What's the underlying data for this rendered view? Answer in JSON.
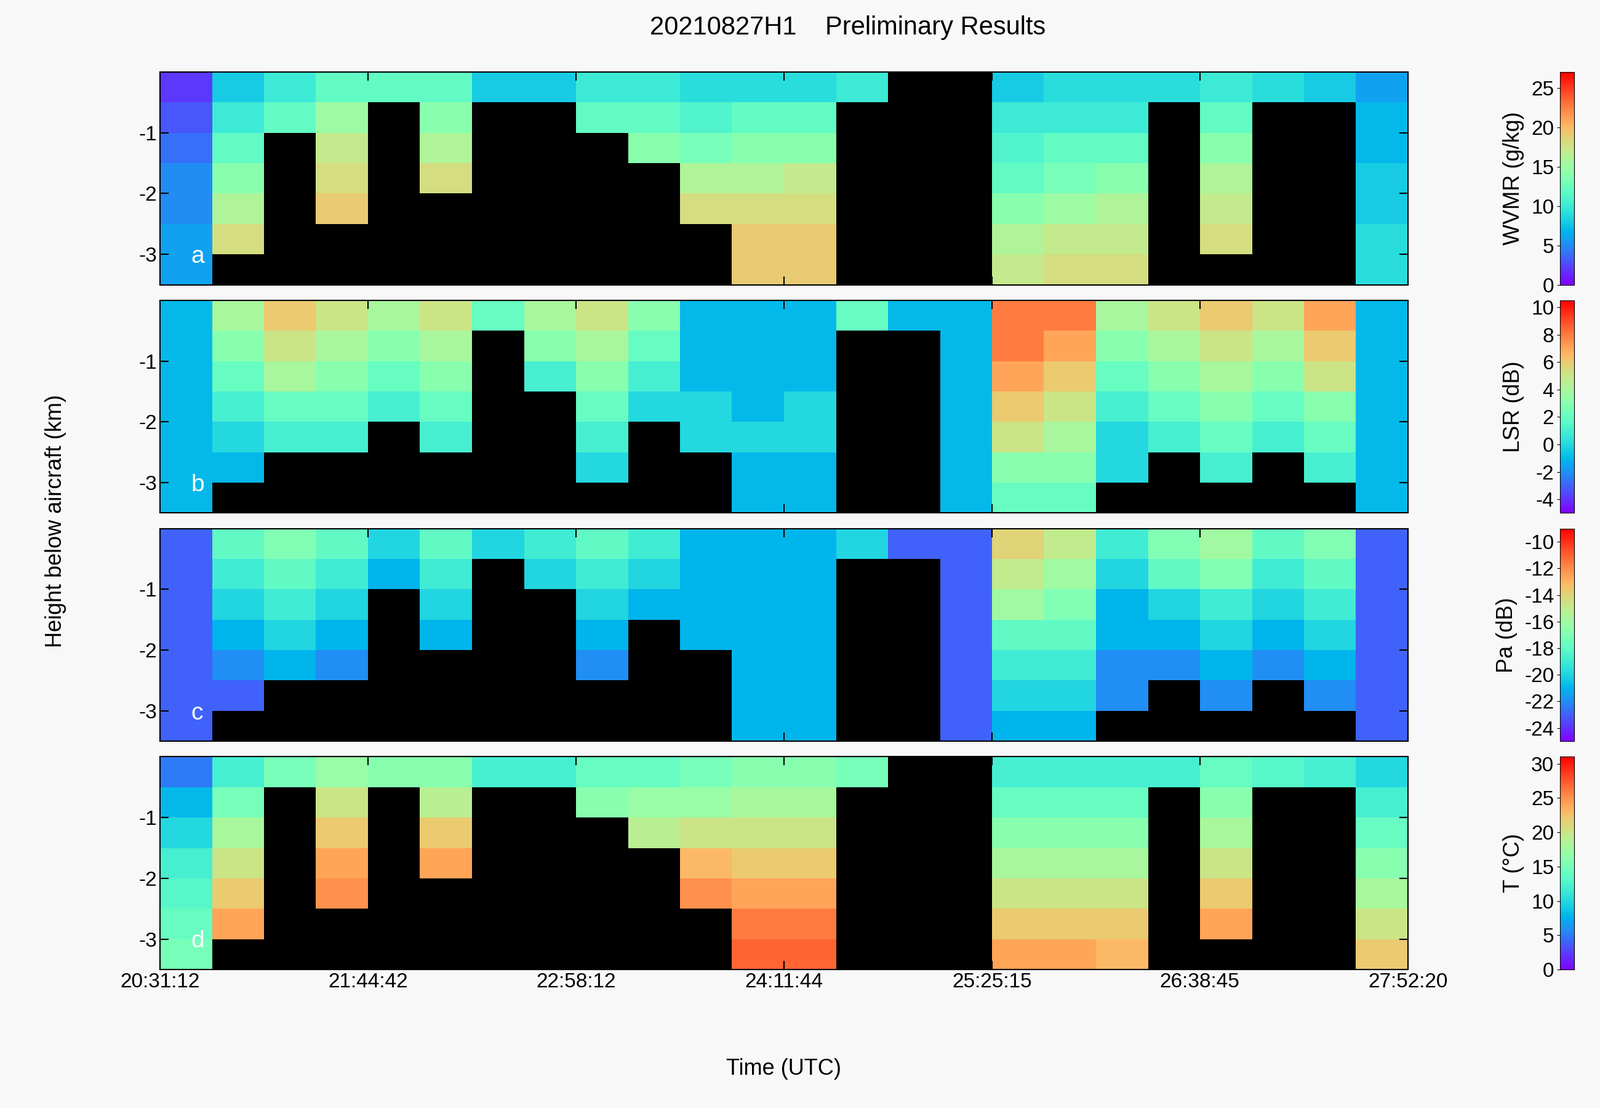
{
  "title": "20210827H1    Preliminary Results",
  "ylabel": "Height below aircraft (km)",
  "xlabel": "Time (UTC)",
  "chart_data": [
    {
      "type": "heatmap",
      "panel": "a",
      "tick_labels": "y",
      "time_edges": [
        73872,
        74975,
        76078,
        77180,
        78283,
        79386,
        80489,
        81592,
        82695,
        83798,
        84900,
        86003,
        87106,
        88209,
        89312,
        90415,
        91517,
        92620,
        93723,
        94826,
        95929,
        97032,
        98135,
        99237,
        100340
      ],
      "height_edges": [
        0,
        -0.5,
        -1,
        -1.5,
        -2,
        -2.5,
        -3,
        -3.5
      ],
      "xlim": [
        73872,
        100340
      ],
      "ylim": [
        -3.5,
        0
      ],
      "xticks": [
        {
          "value": 73872,
          "label": "20:31:12"
        },
        {
          "value": 78282,
          "label": "21:44:42"
        },
        {
          "value": 82692,
          "label": "22:58:12"
        },
        {
          "value": 87104,
          "label": "24:11:44"
        },
        {
          "value": 91515,
          "label": "25:25:15"
        },
        {
          "value": 95925,
          "label": "26:38:45"
        },
        {
          "value": 100340,
          "label": "27:52:20"
        }
      ],
      "yticks": [
        -1,
        -2,
        -3
      ],
      "colorbar": {
        "label": "WVMR (g/kg)",
        "range": [
          0,
          27
        ],
        "ticks": [
          0,
          5,
          10,
          15,
          20,
          25
        ]
      },
      "cells": [
        [
          2,
          3,
          4,
          5,
          5,
          6,
          6
        ],
        [
          8,
          10,
          12,
          14,
          16,
          18,
          null
        ],
        [
          10,
          12,
          null,
          null,
          null,
          null,
          null
        ],
        [
          12,
          15,
          17,
          18,
          19,
          null,
          null
        ],
        [
          12,
          null,
          null,
          null,
          null,
          null,
          null
        ],
        [
          12,
          14,
          16,
          18,
          null,
          null,
          null
        ],
        [
          8,
          null,
          null,
          null,
          null,
          null,
          null
        ],
        [
          8,
          null,
          null,
          null,
          null,
          null,
          null
        ],
        [
          10,
          12,
          null,
          null,
          null,
          null,
          null
        ],
        [
          10,
          12,
          14,
          null,
          null,
          null,
          null
        ],
        [
          9,
          11,
          13,
          16,
          18,
          null,
          null
        ],
        [
          9,
          12,
          14,
          16,
          18,
          19,
          19
        ],
        [
          9,
          12,
          14,
          17,
          18,
          19,
          19
        ],
        [
          10,
          null,
          null,
          null,
          null,
          null,
          null
        ],
        [
          null,
          null,
          null,
          null,
          null,
          null,
          null
        ],
        [
          null,
          null,
          null,
          null,
          null,
          null,
          null
        ],
        [
          8,
          10,
          11,
          12,
          14,
          16,
          17
        ],
        [
          9,
          10,
          12,
          13,
          15,
          17,
          18
        ],
        [
          9,
          10,
          12,
          14,
          16,
          17,
          18
        ],
        [
          9,
          null,
          null,
          null,
          null,
          null,
          null
        ],
        [
          10,
          12,
          14,
          16,
          17,
          18,
          null
        ],
        [
          9,
          null,
          null,
          null,
          null,
          null,
          null
        ],
        [
          8,
          null,
          null,
          null,
          null,
          null,
          null
        ],
        [
          6,
          7,
          7,
          8,
          8,
          9,
          9
        ]
      ]
    },
    {
      "type": "heatmap",
      "panel": "b",
      "tick_labels": "y",
      "time_edges": [
        73872,
        74975,
        76078,
        77180,
        78283,
        79386,
        80489,
        81592,
        82695,
        83798,
        84900,
        86003,
        87106,
        88209,
        89312,
        90415,
        91517,
        92620,
        93723,
        94826,
        95929,
        97032,
        98135,
        99237,
        100340
      ],
      "height_edges": [
        0,
        -0.5,
        -1,
        -1.5,
        -2,
        -2.5,
        -3,
        -3.5
      ],
      "xlim": [
        73872,
        100340
      ],
      "ylim": [
        -3.5,
        0
      ],
      "xticks": [
        {
          "value": 73872,
          "label": "20:31:12"
        },
        {
          "value": 78282,
          "label": "21:44:42"
        },
        {
          "value": 82692,
          "label": "22:58:12"
        },
        {
          "value": 87104,
          "label": "24:11:44"
        },
        {
          "value": 91515,
          "label": "25:25:15"
        },
        {
          "value": 95925,
          "label": "26:38:45"
        },
        {
          "value": 100340,
          "label": "27:52:20"
        }
      ],
      "yticks": [
        -1,
        -2,
        -3
      ],
      "colorbar": {
        "label": "LSR (dB)",
        "range": [
          -5,
          10.5
        ],
        "ticks": [
          -4,
          -2,
          0,
          2,
          4,
          6,
          8,
          10
        ]
      },
      "cells": [
        [
          -1,
          -1,
          -1,
          -1,
          -1,
          -1,
          -1
        ],
        [
          4,
          3,
          2,
          1,
          0,
          -1,
          null
        ],
        [
          6,
          5,
          4,
          2,
          1,
          null,
          null
        ],
        [
          5,
          4,
          3,
          2,
          1,
          null,
          null
        ],
        [
          4,
          3,
          2,
          1,
          null,
          null,
          null
        ],
        [
          5,
          4,
          3,
          2,
          1,
          null,
          null
        ],
        [
          2,
          null,
          null,
          null,
          null,
          null,
          null
        ],
        [
          4,
          3,
          1,
          null,
          null,
          null,
          null
        ],
        [
          5,
          4,
          3,
          2,
          1,
          0,
          null
        ],
        [
          3,
          2,
          1,
          0,
          null,
          null,
          null
        ],
        [
          -1,
          -1,
          -1,
          0,
          0,
          null,
          null
        ],
        [
          -1,
          -1,
          -1,
          -1,
          0,
          -1,
          -1
        ],
        [
          -1,
          -1,
          -1,
          0,
          0,
          -1,
          -1
        ],
        [
          2,
          null,
          null,
          null,
          null,
          null,
          null
        ],
        [
          -1,
          null,
          null,
          null,
          null,
          null,
          null
        ],
        [
          -1,
          -1,
          -1,
          -1,
          -1,
          -1,
          -1
        ],
        [
          8,
          8,
          7,
          6,
          5,
          3,
          2
        ],
        [
          8,
          7,
          6,
          5,
          4,
          3,
          2
        ],
        [
          4,
          3,
          2,
          1,
          0,
          0,
          null
        ],
        [
          5,
          4,
          3,
          2,
          1,
          null,
          null
        ],
        [
          6,
          5,
          4,
          3,
          2,
          1,
          null
        ],
        [
          5,
          4,
          3,
          2,
          1,
          null,
          null
        ],
        [
          7,
          6,
          5,
          3,
          2,
          1,
          null
        ],
        [
          -1,
          -1,
          -1,
          -1,
          -1,
          -1,
          -1
        ]
      ]
    },
    {
      "type": "heatmap",
      "panel": "c",
      "tick_labels": "y",
      "time_edges": [
        73872,
        74975,
        76078,
        77180,
        78283,
        79386,
        80489,
        81592,
        82695,
        83798,
        84900,
        86003,
        87106,
        88209,
        89312,
        90415,
        91517,
        92620,
        93723,
        94826,
        95929,
        97032,
        98135,
        99237,
        100340
      ],
      "height_edges": [
        0,
        -0.5,
        -1,
        -1.5,
        -2,
        -2.5,
        -3,
        -3.5
      ],
      "xlim": [
        73872,
        100340
      ],
      "ylim": [
        -3.5,
        0
      ],
      "xticks": [
        {
          "value": 73872,
          "label": "20:31:12"
        },
        {
          "value": 78282,
          "label": "21:44:42"
        },
        {
          "value": 82692,
          "label": "22:58:12"
        },
        {
          "value": 87104,
          "label": "24:11:44"
        },
        {
          "value": 91515,
          "label": "25:25:15"
        },
        {
          "value": 95925,
          "label": "26:38:45"
        },
        {
          "value": 100340,
          "label": "27:52:20"
        }
      ],
      "yticks": [
        -1,
        -2,
        -3
      ],
      "colorbar": {
        "label": "Pa (dB)",
        "range": [
          -25,
          -9
        ],
        "ticks": [
          -24,
          -22,
          -20,
          -18,
          -16,
          -14,
          -12,
          -10
        ]
      },
      "cells": [
        [
          -23,
          -23,
          -23,
          -23,
          -23,
          -23,
          -23
        ],
        [
          -18,
          -19,
          -20,
          -21,
          -22,
          -23,
          null
        ],
        [
          -17,
          -18,
          -19,
          -20,
          -21,
          null,
          null
        ],
        [
          -18,
          -19,
          -20,
          -21,
          -22,
          null,
          null
        ],
        [
          -20,
          -21,
          null,
          null,
          null,
          null,
          null
        ],
        [
          -18,
          -19,
          -20,
          -21,
          null,
          null,
          null
        ],
        [
          -20,
          null,
          null,
          null,
          null,
          null,
          null
        ],
        [
          -19,
          -20,
          null,
          null,
          null,
          null,
          null
        ],
        [
          -18,
          -19,
          -20,
          -21,
          -22,
          null,
          null
        ],
        [
          -19,
          -20,
          -21,
          null,
          null,
          null,
          null
        ],
        [
          -21,
          -21,
          -21,
          -21,
          null,
          null,
          null
        ],
        [
          -21,
          -21,
          -21,
          -21,
          -21,
          -21,
          -21
        ],
        [
          -21,
          -21,
          -21,
          -21,
          -21,
          -21,
          -21
        ],
        [
          -20,
          null,
          null,
          null,
          null,
          null,
          null
        ],
        [
          -23,
          null,
          null,
          null,
          null,
          null,
          null
        ],
        [
          -23,
          -23,
          -23,
          -23,
          -23,
          -23,
          -23
        ],
        [
          -14,
          -15,
          -16,
          -18,
          -19,
          -20,
          -21
        ],
        [
          -15,
          -16,
          -17,
          -18,
          -19,
          -20,
          -21
        ],
        [
          -19,
          -20,
          -21,
          -21,
          -22,
          -22,
          null
        ],
        [
          -17,
          -18,
          -20,
          -21,
          -22,
          null,
          null
        ],
        [
          -16,
          -17,
          -19,
          -20,
          -21,
          -22,
          null
        ],
        [
          -18,
          -19,
          -20,
          -21,
          -22,
          null,
          null
        ],
        [
          -17,
          -18,
          -19,
          -20,
          -21,
          -22,
          null
        ],
        [
          -23,
          -23,
          -23,
          -23,
          -23,
          -23,
          -23
        ]
      ]
    },
    {
      "type": "heatmap",
      "panel": "d",
      "time_edges": [
        73872,
        74975,
        76078,
        77180,
        78283,
        79386,
        80489,
        81592,
        82695,
        83798,
        84900,
        86003,
        87106,
        88209,
        89312,
        90415,
        91517,
        92620,
        93723,
        94826,
        95929,
        97032,
        98135,
        99237,
        100340
      ],
      "height_edges": [
        0,
        -0.5,
        -1,
        -1.5,
        -2,
        -2.5,
        -3,
        -3.5
      ],
      "xlim": [
        73872,
        100340
      ],
      "ylim": [
        -3.5,
        0
      ],
      "xticks": [
        {
          "value": 73872,
          "label": "20:31:12"
        },
        {
          "value": 78282,
          "label": "21:44:42"
        },
        {
          "value": 82692,
          "label": "22:58:12"
        },
        {
          "value": 87104,
          "label": "24:11:44"
        },
        {
          "value": 91515,
          "label": "25:25:15"
        },
        {
          "value": 95925,
          "label": "26:38:45"
        },
        {
          "value": 100340,
          "label": "27:52:20"
        }
      ],
      "yticks": [
        -1,
        -2,
        -3
      ],
      "colorbar": {
        "label": "T (°C)",
        "range": [
          0,
          31
        ],
        "ticks": [
          0,
          5,
          10,
          15,
          20,
          25,
          30
        ]
      },
      "cells": [
        [
          5,
          8,
          10,
          12,
          13,
          14,
          15
        ],
        [
          12,
          15,
          18,
          20,
          22,
          24,
          null
        ],
        [
          15,
          null,
          null,
          null,
          null,
          null,
          null
        ],
        [
          17,
          20,
          22,
          24,
          25,
          null,
          null
        ],
        [
          16,
          null,
          null,
          null,
          null,
          null,
          null
        ],
        [
          16,
          19,
          22,
          24,
          null,
          null,
          null
        ],
        [
          12,
          null,
          null,
          null,
          null,
          null,
          null
        ],
        [
          12,
          null,
          null,
          null,
          null,
          null,
          null
        ],
        [
          14,
          16,
          null,
          null,
          null,
          null,
          null
        ],
        [
          14,
          17,
          19,
          null,
          null,
          null,
          null
        ],
        [
          15,
          17,
          20,
          23,
          25,
          null,
          null
        ],
        [
          16,
          18,
          20,
          22,
          24,
          26,
          27
        ],
        [
          16,
          18,
          20,
          22,
          24,
          26,
          27
        ],
        [
          15,
          null,
          null,
          null,
          null,
          null,
          null
        ],
        [
          null,
          null,
          null,
          null,
          null,
          null,
          null
        ],
        [
          null,
          null,
          null,
          null,
          null,
          null,
          null
        ],
        [
          12,
          14,
          16,
          18,
          20,
          22,
          24
        ],
        [
          12,
          14,
          16,
          18,
          20,
          22,
          24
        ],
        [
          12,
          14,
          16,
          18,
          20,
          22,
          23
        ],
        [
          12,
          null,
          null,
          null,
          null,
          null,
          null
        ],
        [
          14,
          16,
          18,
          20,
          22,
          24,
          null
        ],
        [
          13,
          null,
          null,
          null,
          null,
          null,
          null
        ],
        [
          12,
          null,
          null,
          null,
          null,
          null,
          null
        ],
        [
          10,
          12,
          14,
          16,
          18,
          20,
          22
        ]
      ]
    }
  ]
}
